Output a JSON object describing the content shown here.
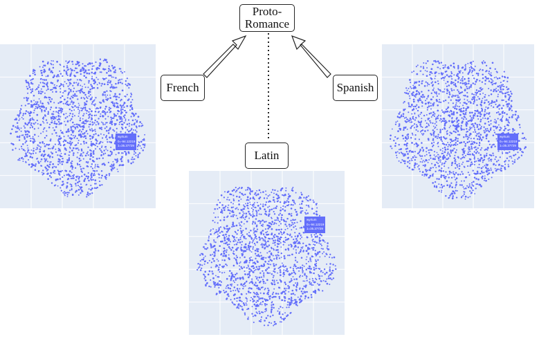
{
  "nodes": {
    "proto": {
      "line1": "Proto-",
      "line2": "Romance"
    },
    "french": "French",
    "spanish": "Spanish",
    "latin": "Latin"
  },
  "plots": {
    "point_color": "#636efa",
    "background_color": "#e5ecf6",
    "tooltip": {
      "word": "wyrtum",
      "x_line": "0=-94.12219",
      "y_line": "1=35.37729"
    }
  }
}
